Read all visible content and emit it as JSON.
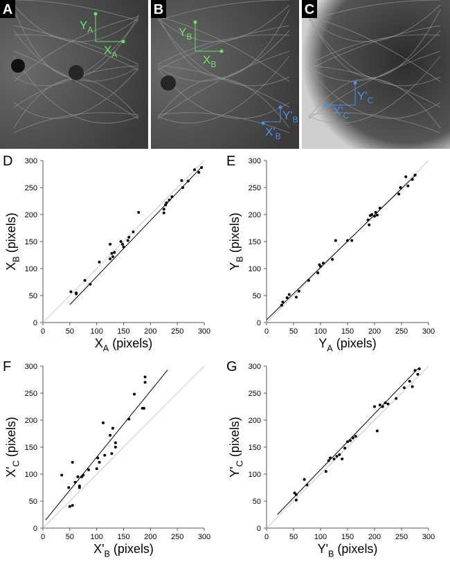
{
  "panels": [
    {
      "letter": "A",
      "labels": [
        [
          "Y",
          "A"
        ],
        [
          "X",
          "A"
        ]
      ]
    },
    {
      "letter": "B",
      "labels": [
        [
          "Y",
          "B"
        ],
        [
          "X",
          "B"
        ],
        [
          "Y'",
          "B"
        ],
        [
          "X'",
          "B"
        ]
      ]
    },
    {
      "letter": "C",
      "labels": [
        [
          "Y'",
          "C"
        ],
        [
          "X'",
          "C"
        ]
      ]
    }
  ],
  "chart_data": [
    {
      "type": "scatter",
      "panel": "D",
      "xlabel": [
        "X",
        "A",
        " (pixels)"
      ],
      "ylabel": [
        "X",
        "B",
        " (pixels)"
      ],
      "xlim": [
        0,
        300
      ],
      "ylim": [
        0,
        300
      ],
      "xticks": [
        0,
        50,
        100,
        150,
        200,
        250,
        300
      ],
      "yticks": [
        0,
        50,
        100,
        150,
        200,
        250,
        300
      ],
      "color": "#000000",
      "points": {
        "x": [
          52,
          62,
          62,
          78,
          88,
          105,
          125,
          125,
          128,
          130,
          133,
          145,
          148,
          150,
          158,
          160,
          168,
          178,
          225,
          225,
          228,
          230,
          235,
          240,
          258,
          260,
          270,
          282,
          290,
          295
        ],
        "y": [
          57,
          55,
          53,
          78,
          71,
          112,
          145,
          118,
          128,
          122,
          130,
          150,
          145,
          140,
          152,
          158,
          168,
          204,
          203,
          210,
          218,
          222,
          227,
          233,
          263,
          250,
          262,
          283,
          278,
          287
        ]
      },
      "fit": {
        "x": [
          50,
          297
        ],
        "y": [
          33,
          290
        ]
      },
      "identity": {
        "x": [
          0,
          300
        ],
        "y": [
          0,
          300
        ]
      }
    },
    {
      "type": "scatter",
      "panel": "E",
      "xlabel": [
        "Y",
        "A",
        " (pixels)"
      ],
      "ylabel": [
        "Y",
        "B",
        " (pixels)"
      ],
      "xlim": [
        0,
        300
      ],
      "ylim": [
        0,
        300
      ],
      "xticks": [
        0,
        50,
        100,
        150,
        200,
        250,
        300
      ],
      "yticks": [
        0,
        50,
        100,
        150,
        200,
        250,
        300
      ],
      "color": "#000000",
      "points": {
        "x": [
          28,
          30,
          38,
          42,
          55,
          60,
          78,
          95,
          98,
          100,
          105,
          122,
          128,
          150,
          158,
          188,
          190,
          192,
          195,
          200,
          202,
          205,
          210,
          245,
          248,
          258,
          262,
          270,
          275
        ],
        "y": [
          32,
          38,
          46,
          52,
          47,
          58,
          78,
          92,
          107,
          104,
          110,
          117,
          152,
          152,
          152,
          190,
          181,
          198,
          200,
          197,
          204,
          199,
          212,
          238,
          250,
          270,
          253,
          265,
          273
        ]
      },
      "fit": {
        "x": [
          0,
          278
        ],
        "y": [
          5,
          275
        ]
      },
      "identity": {
        "x": [
          0,
          300
        ],
        "y": [
          0,
          300
        ]
      }
    },
    {
      "type": "scatter",
      "panel": "F",
      "xlabel": [
        "X'",
        "B",
        " (pixels)"
      ],
      "ylabel": [
        "X'",
        "C",
        " (pixels)"
      ],
      "xlim": [
        0,
        300
      ],
      "ylim": [
        0,
        300
      ],
      "xticks": [
        0,
        50,
        100,
        150,
        200,
        250,
        300
      ],
      "yticks": [
        0,
        50,
        100,
        150,
        200,
        250,
        300
      ],
      "color": "#000000",
      "points": {
        "x": [
          35,
          48,
          50,
          55,
          55,
          60,
          65,
          68,
          68,
          72,
          75,
          85,
          100,
          102,
          105,
          112,
          115,
          125,
          128,
          130,
          135,
          135,
          160,
          170,
          185,
          188,
          190,
          190
        ],
        "y": [
          98,
          75,
          40,
          122,
          42,
          85,
          95,
          75,
          78,
          95,
          98,
          108,
          110,
          130,
          122,
          195,
          135,
          172,
          138,
          185,
          150,
          158,
          202,
          248,
          222,
          222,
          270,
          280
        ]
      },
      "fit": {
        "x": [
          5,
          232
        ],
        "y": [
          15,
          293
        ]
      },
      "identity": {
        "x": [
          0,
          300
        ],
        "y": [
          0,
          300
        ]
      }
    },
    {
      "type": "scatter",
      "panel": "G",
      "xlabel": [
        "Y'",
        "B",
        " (pixels)"
      ],
      "ylabel": [
        "Y'",
        "C",
        " (pixels)"
      ],
      "xlim": [
        0,
        300
      ],
      "ylim": [
        0,
        300
      ],
      "xticks": [
        0,
        50,
        100,
        150,
        200,
        250,
        300
      ],
      "yticks": [
        0,
        50,
        100,
        150,
        200,
        250,
        300
      ],
      "color": "#000000",
      "points": {
        "x": [
          52,
          55,
          55,
          70,
          75,
          110,
          115,
          118,
          125,
          130,
          135,
          140,
          145,
          150,
          155,
          160,
          165,
          200,
          205,
          210,
          215,
          220,
          225,
          240,
          255,
          265,
          270,
          275,
          280,
          283
        ],
        "y": [
          65,
          52,
          62,
          90,
          80,
          105,
          125,
          130,
          128,
          133,
          136,
          128,
          148,
          160,
          162,
          167,
          170,
          225,
          180,
          228,
          225,
          232,
          230,
          240,
          260,
          272,
          262,
          292,
          285,
          295
        ]
      },
      "fit": {
        "x": [
          20,
          282
        ],
        "y": [
          25,
          297
        ]
      },
      "identity": {
        "x": [
          0,
          300
        ],
        "y": [
          0,
          300
        ]
      }
    }
  ]
}
